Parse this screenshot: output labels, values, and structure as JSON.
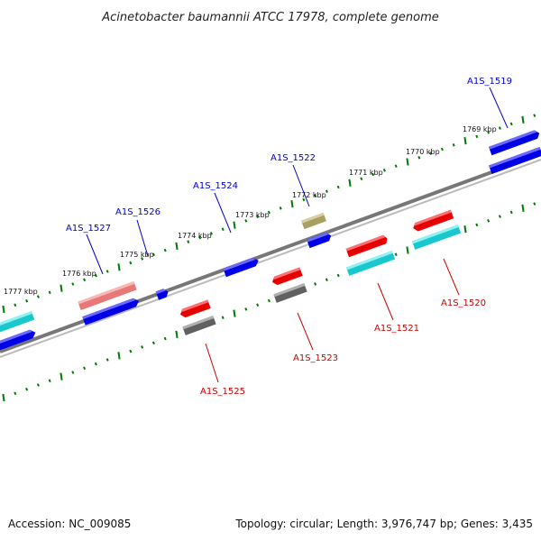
{
  "title": "Acinetobacter baumannii ATCC 17978, complete genome",
  "footer": {
    "accession": "Accession: NC_009085",
    "topology": "Topology: circular; Length: 3,976,747 bp; Genes: 3,435"
  },
  "colors": {
    "backbone": "#888888",
    "tick": "#007a00",
    "gene_label_top": "#0000cc",
    "gene_label_bottom": "#cc0000",
    "blue": "#0000e6",
    "cyan": "#19c8cc",
    "red": "#e60000",
    "gray": "#606060",
    "pink": "#e87878",
    "olive": "#a8a060"
  },
  "scale_labels": [
    "1777 kbp",
    "1776 kbp",
    "1775 kbp",
    "1774 kbp",
    "1773 kbp",
    "1772 kbp",
    "1771 kbp",
    "1770 kbp",
    "1769 kbp"
  ],
  "gene_labels": [
    {
      "id": "A1S_1519",
      "strand": "top"
    },
    {
      "id": "A1S_1520",
      "strand": "bottom"
    },
    {
      "id": "A1S_1521",
      "strand": "bottom"
    },
    {
      "id": "A1S_1522",
      "strand": "top"
    },
    {
      "id": "A1S_1523",
      "strand": "bottom"
    },
    {
      "id": "A1S_1524",
      "strand": "top"
    },
    {
      "id": "A1S_1525",
      "strand": "bottom"
    },
    {
      "id": "A1S_1526",
      "strand": "top"
    },
    {
      "id": "A1S_1527",
      "strand": "top"
    }
  ]
}
